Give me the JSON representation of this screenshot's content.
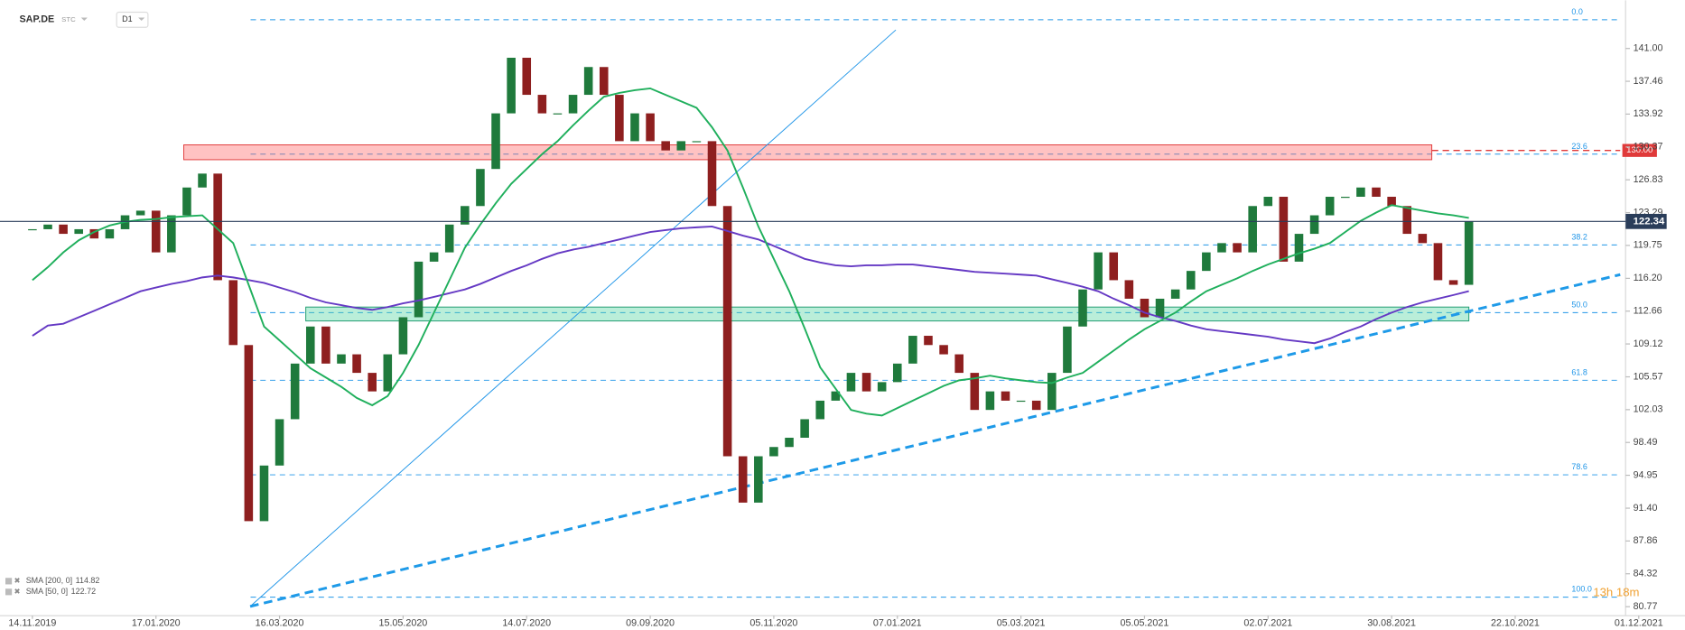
{
  "chart_data": {
    "type": "candlestick",
    "title": "SAP.DE",
    "source": "STC",
    "interval": "D1",
    "countdown": "13h 18m",
    "categories": [
      "14.11.2019",
      null,
      null,
      null,
      null,
      null,
      null,
      null,
      "17.01.2020",
      null,
      null,
      null,
      null,
      null,
      null,
      null,
      "16.03.2020",
      null,
      null,
      null,
      null,
      null,
      null,
      null,
      "15.05.2020",
      null,
      null,
      null,
      null,
      null,
      null,
      null,
      "14.07.2020",
      null,
      null,
      null,
      null,
      null,
      null,
      null,
      "09.09.2020",
      null,
      null,
      null,
      null,
      null,
      null,
      null,
      "05.11.2020",
      null,
      null,
      null,
      null,
      null,
      null,
      null,
      "07.01.2021",
      null,
      null,
      null,
      null,
      null,
      null,
      null,
      "05.03.2021",
      null,
      null,
      null,
      null,
      null,
      null,
      null,
      "05.05.2021",
      null,
      null,
      null,
      null,
      null,
      null,
      null,
      "02.07.2021",
      null,
      null,
      null,
      null,
      null,
      null,
      null,
      "30.08.2021",
      null,
      null,
      null,
      null,
      null,
      null,
      null,
      "22.10.2021",
      null,
      null,
      null,
      null,
      null,
      null,
      null,
      "01.12.2021"
    ],
    "series": [
      {
        "kind": "candles",
        "up_color": "#1f7a3c",
        "down_color": "#8e1f1f",
        "values": [
          121.5,
          122,
          121,
          121.5,
          120.5,
          121.5,
          123,
          123.5,
          119,
          123,
          126,
          127.5,
          116,
          109,
          90,
          96,
          101,
          107,
          111,
          107,
          108,
          106,
          104,
          108,
          112,
          118,
          119,
          122,
          124,
          128,
          134,
          140,
          136,
          134,
          134,
          136,
          139,
          136,
          131,
          134,
          131,
          130,
          131,
          131,
          124,
          97,
          92,
          97,
          98,
          99,
          101,
          103,
          104,
          106,
          104,
          105,
          107,
          110,
          109,
          108,
          106,
          102,
          104,
          103,
          103,
          102,
          106,
          111,
          115,
          119,
          116,
          114,
          112,
          114,
          115,
          117,
          119,
          120,
          119,
          124,
          125,
          118,
          121,
          123,
          125,
          125,
          126,
          125,
          124,
          121,
          120,
          116,
          115.5,
          122.34,
          null,
          null,
          null,
          null,
          null,
          null,
          null,
          null,
          null,
          null,
          null
        ]
      },
      {
        "kind": "line",
        "name": "SMA [200, 0]",
        "color": "#6539c4",
        "values": [
          110,
          111.1,
          111.3,
          112,
          112.7,
          113.4,
          114.1,
          114.8,
          115.2,
          115.6,
          115.9,
          116.3,
          116.5,
          116.3,
          116,
          115.7,
          115.2,
          114.7,
          114.1,
          113.6,
          113.3,
          113,
          112.8,
          113.1,
          113.5,
          113.8,
          114.2,
          114.6,
          115,
          115.6,
          116.3,
          117,
          117.6,
          118.3,
          118.9,
          119.3,
          119.6,
          120,
          120.4,
          120.8,
          121.2,
          121.4,
          121.6,
          121.7,
          121.8,
          121.3,
          120.8,
          120.4,
          119.7,
          119,
          118.3,
          117.9,
          117.6,
          117.5,
          117.6,
          117.6,
          117.7,
          117.7,
          117.5,
          117.3,
          117.1,
          116.9,
          116.8,
          116.7,
          116.6,
          116.5,
          116.1,
          115.7,
          115.3,
          114.8,
          114,
          113.3,
          112.5,
          112,
          111.6,
          111.1,
          110.7,
          110.5,
          110.3,
          110.1,
          109.9,
          109.6,
          109.4,
          109.2,
          109.7,
          110.4,
          111,
          111.8,
          112.5,
          113.1,
          113.6,
          114,
          114.4,
          114.82,
          null,
          null,
          null,
          null,
          null,
          null,
          null,
          null,
          null,
          null,
          null
        ]
      },
      {
        "kind": "line",
        "name": "SMA [50, 0]",
        "color": "#1faf5c",
        "values": [
          116,
          117.4,
          119,
          120.3,
          121.2,
          121.9,
          122.3,
          122.5,
          122.6,
          122.8,
          122.9,
          123,
          121.5,
          120,
          115.5,
          111,
          109.5,
          108,
          106.5,
          105.5,
          104.5,
          103.3,
          102.5,
          103.5,
          106,
          109,
          112.5,
          116,
          119.5,
          122,
          124.3,
          126.4,
          128,
          129.6,
          131,
          132.7,
          134.3,
          135.8,
          136.2,
          136.5,
          136.7,
          136,
          135.3,
          134.6,
          132.5,
          130,
          126,
          121.8,
          118.3,
          114.8,
          110.8,
          106.6,
          104.3,
          102,
          101.6,
          101.4,
          102.2,
          103,
          103.8,
          104.6,
          105.2,
          105.4,
          105.7,
          105.4,
          105.2,
          105,
          104.9,
          105.5,
          106,
          107.2,
          108.4,
          109.6,
          110.7,
          111.6,
          112.5,
          113.7,
          114.8,
          115.5,
          116.2,
          117,
          117.7,
          118.3,
          118.9,
          119.4,
          120,
          121.2,
          122.4,
          123.3,
          124.1,
          123.8,
          123.5,
          123.2,
          123,
          122.72,
          null,
          null,
          null,
          null,
          null,
          null,
          null,
          null,
          null,
          null,
          null
        ]
      }
    ],
    "ylim": [
      79.8,
      146.2
    ],
    "yticks": [
      {
        "value": 141,
        "label": "141.00"
      },
      {
        "value": 137.46,
        "label": "137.46"
      },
      {
        "value": 133.92,
        "label": "133.92"
      },
      {
        "value": 130.37,
        "label": "130.37"
      },
      {
        "value": 126.83,
        "label": "126.83"
      },
      {
        "value": 123.29,
        "label": "123.29"
      },
      {
        "value": 119.75,
        "label": "119.75"
      },
      {
        "value": 116.2,
        "label": "116.20"
      },
      {
        "value": 112.66,
        "label": "112.66"
      },
      {
        "value": 109.12,
        "label": "109.12"
      },
      {
        "value": 105.57,
        "label": "105.57"
      },
      {
        "value": 102.03,
        "label": "102.03"
      },
      {
        "value": 98.49,
        "label": "98.49"
      },
      {
        "value": 94.95,
        "label": "94.95"
      },
      {
        "value": 91.4,
        "label": "91.40"
      },
      {
        "value": 87.86,
        "label": "87.86"
      },
      {
        "value": 84.32,
        "label": "84.32"
      },
      {
        "value": 80.77,
        "label": "80.77"
      }
    ],
    "fib_levels": [
      {
        "value": 144.1,
        "label": "0.0"
      },
      {
        "value": 129.6,
        "label": "23.6"
      },
      {
        "value": 119.8,
        "label": "38.2"
      },
      {
        "value": 112.5,
        "label": "50.0"
      },
      {
        "value": 105.2,
        "label": "61.8"
      },
      {
        "value": 95,
        "label": "78.6"
      },
      {
        "value": 81.8,
        "label": "100.0"
      }
    ],
    "fib_color": "#2196e8",
    "zones": [
      {
        "x": [
          9.8,
          90.6
        ],
        "y": [
          129,
          130.6
        ],
        "fill": "rgba(255,110,110,0.42)",
        "stroke": "#e03a3a"
      },
      {
        "x": [
          17.7,
          93
        ],
        "y": [
          111.6,
          113.1
        ],
        "fill": "rgba(90,215,165,0.42)",
        "stroke": "#1e9a6e"
      }
    ],
    "trendlines": [
      {
        "x": [
          14.1,
          55.9
        ],
        "y": [
          80.8,
          143
        ],
        "color": "#2196e8",
        "dashed": false
      },
      {
        "x": [
          14.1,
          102.8
        ],
        "y": [
          80.8,
          116.6
        ],
        "color": "#1e9ae8",
        "dashed": true
      }
    ],
    "alert": {
      "value": 130,
      "label": "130.00",
      "x": [
        90.6,
        102.8
      ],
      "color": "#e03a3a"
    },
    "last_price_color": "#2a3d5a"
  }
}
